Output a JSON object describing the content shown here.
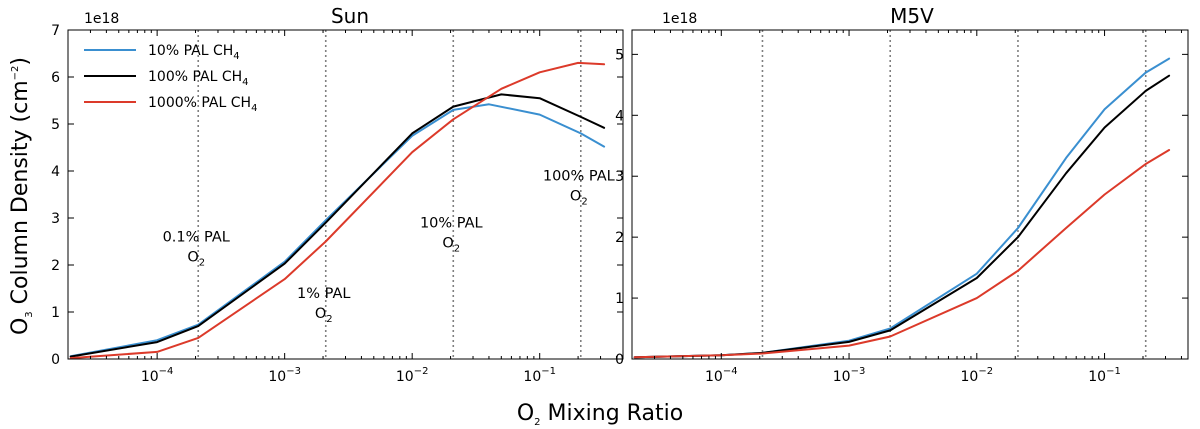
{
  "figure": {
    "xlabel_main": "O",
    "xlabel_sub": "2",
    "xlabel_rest": " Mixing Ratio",
    "ylabel_main": "O",
    "ylabel_sub": "3",
    "ylabel_rest": " Column Density (cm",
    "ylabel_sup": "−2",
    "ylabel_close": ")"
  },
  "legend": [
    {
      "label": "10% PAL CH",
      "sub": "4",
      "color": "#3a8fd0"
    },
    {
      "label": "100% PAL CH",
      "sub": "4",
      "color": "#000000"
    },
    {
      "label": "1000% PAL CH",
      "sub": "4",
      "color": "#dc3a2a"
    }
  ],
  "chart_data": [
    {
      "type": "line",
      "title": "Sun",
      "offset_label": "1e18",
      "xscale": "log",
      "xlim": [
        2e-05,
        0.45
      ],
      "ylim": [
        0,
        7
      ],
      "yticks": [
        0,
        1,
        2,
        3,
        4,
        5,
        6,
        7
      ],
      "yticklabels": [
        "0",
        "1",
        "2",
        "3",
        "4",
        "5",
        "6",
        "7"
      ],
      "xticks": [
        {
          "value": 0.0001,
          "base": "10",
          "exp": "−4"
        },
        {
          "value": 0.001,
          "base": "10",
          "exp": "−3"
        },
        {
          "value": 0.01,
          "base": "10",
          "exp": "−2"
        },
        {
          "value": 0.1,
          "base": "10",
          "exp": "−1"
        }
      ],
      "vlines": [
        0.00021,
        0.0021,
        0.021,
        0.21
      ],
      "annotations": [
        {
          "line1": "0.1% PAL",
          "line2": "O",
          "sub": "2",
          "x": 0.00021,
          "y": 2.5
        },
        {
          "line1": "1% PAL",
          "line2": "O",
          "sub": "2",
          "x": 0.0021,
          "y": 1.3
        },
        {
          "line1": "10% PAL",
          "line2": "O",
          "sub": "2",
          "x": 0.021,
          "y": 2.8
        },
        {
          "line1": "100% PAL",
          "line2": "O",
          "sub": "2",
          "x": 0.21,
          "y": 3.8
        }
      ],
      "series": [
        {
          "name": "10% PAL CH4",
          "color": "#3a8fd0",
          "x": [
            2.1e-05,
            0.0001,
            0.00021,
            0.001,
            0.0021,
            0.01,
            0.021,
            0.04,
            0.1,
            0.21,
            0.32
          ],
          "y": [
            0.06,
            0.4,
            0.73,
            2.07,
            2.95,
            4.75,
            5.3,
            5.42,
            5.2,
            4.8,
            4.52
          ]
        },
        {
          "name": "100% PAL CH4",
          "color": "#000000",
          "x": [
            2.1e-05,
            0.0001,
            0.00021,
            0.001,
            0.0021,
            0.01,
            0.021,
            0.05,
            0.1,
            0.21,
            0.32
          ],
          "y": [
            0.05,
            0.36,
            0.7,
            2.03,
            2.9,
            4.8,
            5.37,
            5.63,
            5.55,
            5.15,
            4.92
          ]
        },
        {
          "name": "1000% PAL CH4",
          "color": "#dc3a2a",
          "x": [
            2.1e-05,
            0.0001,
            0.00021,
            0.001,
            0.0021,
            0.01,
            0.021,
            0.05,
            0.1,
            0.2,
            0.32
          ],
          "y": [
            0.02,
            0.15,
            0.45,
            1.7,
            2.5,
            4.4,
            5.1,
            5.75,
            6.1,
            6.3,
            6.27
          ]
        }
      ]
    },
    {
      "type": "line",
      "title": "M5V",
      "offset_label": "1e18",
      "xscale": "log",
      "xlim": [
        2e-05,
        0.45
      ],
      "ylim": [
        0,
        5.4
      ],
      "yticks": [
        0,
        1,
        2,
        3,
        4,
        5
      ],
      "yticklabels": [
        "0",
        "1",
        "2",
        "3",
        "4",
        "5"
      ],
      "xticks": [
        {
          "value": 0.0001,
          "base": "10",
          "exp": "−4"
        },
        {
          "value": 0.001,
          "base": "10",
          "exp": "−3"
        },
        {
          "value": 0.01,
          "base": "10",
          "exp": "−2"
        },
        {
          "value": 0.1,
          "base": "10",
          "exp": "−1"
        }
      ],
      "vlines": [
        0.00021,
        0.0021,
        0.021,
        0.21
      ],
      "annotations": [],
      "series": [
        {
          "name": "10% PAL CH4",
          "color": "#3a8fd0",
          "x": [
            2.1e-05,
            0.0001,
            0.00021,
            0.001,
            0.0021,
            0.01,
            0.021,
            0.05,
            0.1,
            0.21,
            0.32
          ],
          "y": [
            0.03,
            0.06,
            0.1,
            0.3,
            0.5,
            1.4,
            2.15,
            3.3,
            4.1,
            4.7,
            4.93
          ]
        },
        {
          "name": "100% PAL CH4",
          "color": "#000000",
          "x": [
            2.1e-05,
            0.0001,
            0.00021,
            0.001,
            0.0021,
            0.01,
            0.021,
            0.05,
            0.1,
            0.21,
            0.32
          ],
          "y": [
            0.03,
            0.06,
            0.1,
            0.28,
            0.47,
            1.33,
            2.0,
            3.05,
            3.8,
            4.4,
            4.65
          ]
        },
        {
          "name": "1000% PAL CH4",
          "color": "#dc3a2a",
          "x": [
            2.1e-05,
            0.0001,
            0.00021,
            0.001,
            0.0021,
            0.01,
            0.021,
            0.05,
            0.1,
            0.21,
            0.32
          ],
          "y": [
            0.03,
            0.06,
            0.09,
            0.22,
            0.37,
            1.0,
            1.45,
            2.15,
            2.7,
            3.2,
            3.43
          ]
        }
      ]
    }
  ]
}
